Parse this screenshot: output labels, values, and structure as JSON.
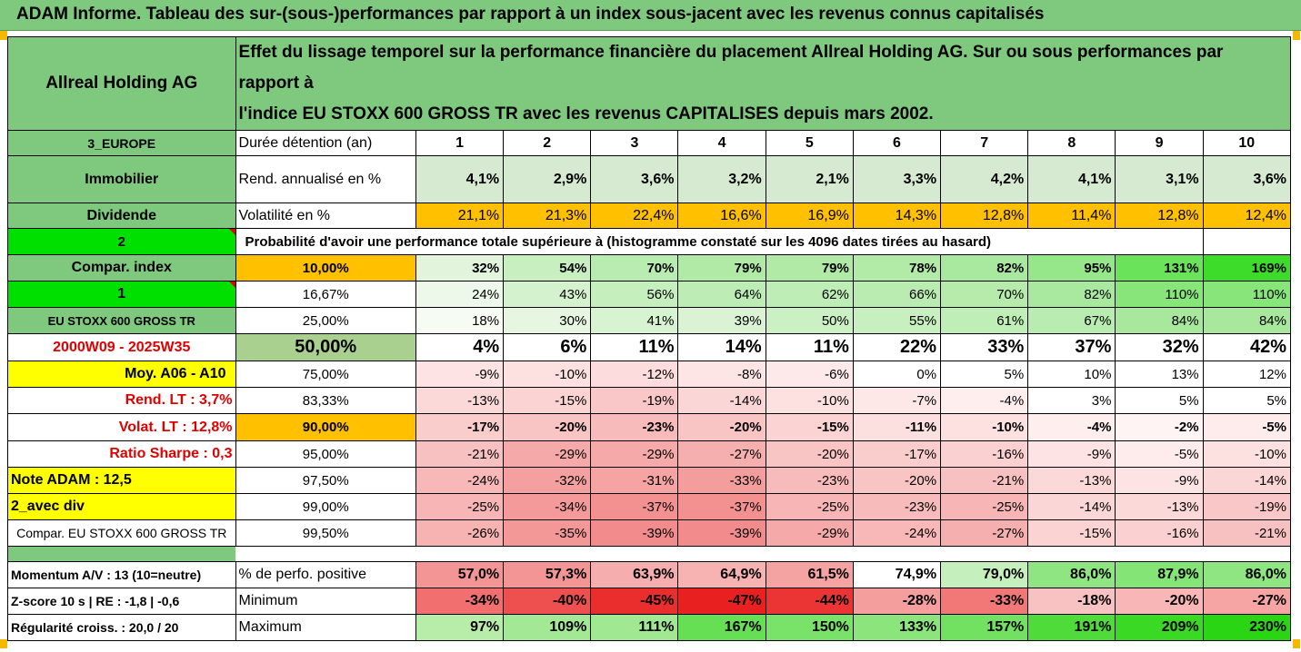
{
  "title": "ADAM Informe. Tableau des sur-(sous-)performances par rapport à un index sous-jacent avec les revenus connus capitalisés",
  "header": {
    "name": "Allreal Holding AG",
    "description_line1": "Effet du lissage temporel sur la performance financière du placement Allreal Holding AG. Sur ou sous performances par rapport à",
    "description_line2": "l'indice EU STOXX 600 GROSS TR avec les revenus CAPITALISES depuis mars 2002."
  },
  "holding": {
    "label": "Durée détention (an)",
    "years": [
      "1",
      "2",
      "3",
      "4",
      "5",
      "6",
      "7",
      "8",
      "9",
      "10"
    ]
  },
  "rend": {
    "label": "Rend. annualisé en %",
    "values": [
      "4,1%",
      "2,9%",
      "3,6%",
      "3,2%",
      "2,1%",
      "3,3%",
      "4,2%",
      "4,1%",
      "3,1%",
      "3,6%"
    ]
  },
  "vol": {
    "label": "Volatilité en %",
    "values": [
      "21,1%",
      "21,3%",
      "22,4%",
      "16,6%",
      "16,9%",
      "14,3%",
      "12,8%",
      "11,4%",
      "12,8%",
      "12,4%"
    ]
  },
  "prob_title": "Probabilité d'avoir une performance totale supérieure à (histogramme constaté sur les 4096 dates tirées au hasard)",
  "side": {
    "region": "3_EUROPE",
    "sector": "Immobilier",
    "type": "Dividende",
    "num2": "2",
    "compar": "Compar. index",
    "num1": "1",
    "index": "EU STOXX 600 GROSS TR",
    "period": "2000W09 - 2025W35",
    "moy": "Moy. A06 - A10",
    "rend_lt": "Rend. LT :   3,7%",
    "volat_lt": "Volat. LT :   12,8%",
    "sharpe": "Ratio Sharpe :   0,3",
    "note": "Note ADAM : 12,5",
    "div": "2_avec div",
    "compar_index": "Compar. EU STOXX 600 GROSS TR"
  },
  "quantiles": [
    {
      "q": "10,00%",
      "v": [
        "32%",
        "54%",
        "70%",
        "79%",
        "79%",
        "78%",
        "82%",
        "95%",
        "131%",
        "169%"
      ],
      "c": [
        "#e2f5dc",
        "#c8efc0",
        "#b9ecb0",
        "#b0eaa6",
        "#b0eaa6",
        "#b2eaa8",
        "#a9e99f",
        "#96e68a",
        "#6ae25a",
        "#3ddc2a"
      ]
    },
    {
      "q": "16,67%",
      "v": [
        "24%",
        "43%",
        "56%",
        "64%",
        "62%",
        "66%",
        "70%",
        "82%",
        "110%",
        "110%"
      ],
      "c": [
        "#eef8ea",
        "#d5f2ce",
        "#c6efbe",
        "#bdedb4",
        "#bfedb6",
        "#baecb1",
        "#b6ebac",
        "#a9e99f",
        "#87e57a",
        "#87e57a"
      ]
    },
    {
      "q": "25,00%",
      "v": [
        "18%",
        "30%",
        "41%",
        "39%",
        "50%",
        "55%",
        "61%",
        "67%",
        "84%",
        "84%"
      ],
      "c": [
        "#f6fbf4",
        "#e6f6e1",
        "#d8f3d1",
        "#dbf3d4",
        "#cbf0c4",
        "#c7efbf",
        "#c0eeb7",
        "#b9ecb0",
        "#a7e89d",
        "#a7e89d"
      ]
    },
    {
      "q": "50,00%",
      "v": [
        "4%",
        "6%",
        "11%",
        "14%",
        "11%",
        "22%",
        "33%",
        "37%",
        "32%",
        "42%"
      ],
      "c": [
        "#ffffff",
        "#ffffff",
        "#ffffff",
        "#ffffff",
        "#ffffff",
        "#ffffff",
        "#ffffff",
        "#ffffff",
        "#ffffff",
        "#ffffff"
      ]
    },
    {
      "q": "75,00%",
      "v": [
        "-9%",
        "-10%",
        "-12%",
        "-8%",
        "-6%",
        "0%",
        "5%",
        "10%",
        "13%",
        "12%"
      ],
      "c": [
        "#fde3e3",
        "#fde1e1",
        "#fcdcdc",
        "#fde5e5",
        "#fde9e9",
        "#ffffff",
        "#ffffff",
        "#ffffff",
        "#ffffff",
        "#ffffff"
      ]
    },
    {
      "q": "83,33%",
      "v": [
        "-13%",
        "-15%",
        "-19%",
        "-14%",
        "-10%",
        "-7%",
        "-4%",
        "3%",
        "5%",
        "5%"
      ],
      "c": [
        "#fcd9d9",
        "#fbd3d3",
        "#f9c7c7",
        "#fbd6d6",
        "#fde1e1",
        "#fde7e7",
        "#feeeee",
        "#ffffff",
        "#ffffff",
        "#ffffff"
      ]
    },
    {
      "q": "90,00%",
      "v": [
        "-17%",
        "-20%",
        "-23%",
        "-20%",
        "-15%",
        "-11%",
        "-10%",
        "-4%",
        "-2%",
        "-5%"
      ],
      "c": [
        "#facdcd",
        "#f9c4c4",
        "#f8bbbb",
        "#f9c4c4",
        "#fbd3d3",
        "#fcdfdf",
        "#fde1e1",
        "#feeeee",
        "#fff4f4",
        "#feecec"
      ]
    },
    {
      "q": "95,00%",
      "v": [
        "-21%",
        "-29%",
        "-29%",
        "-27%",
        "-20%",
        "-17%",
        "-16%",
        "-9%",
        "-5%",
        "-10%"
      ],
      "c": [
        "#f8c1c1",
        "#f6a9a9",
        "#f6a9a9",
        "#f6afaf",
        "#f9c4c4",
        "#facdcd",
        "#fad0d0",
        "#fde3e3",
        "#feecec",
        "#fde1e1"
      ]
    },
    {
      "q": "97,50%",
      "v": [
        "-24%",
        "-32%",
        "-31%",
        "-33%",
        "-23%",
        "-20%",
        "-21%",
        "-13%",
        "-9%",
        "-14%"
      ],
      "c": [
        "#f8b8b8",
        "#f5a0a0",
        "#f5a3a3",
        "#f49d9d",
        "#f8bbbb",
        "#f9c4c4",
        "#f8c1c1",
        "#fcd9d9",
        "#fde3e3",
        "#fbd6d6"
      ]
    },
    {
      "q": "99,00%",
      "v": [
        "-25%",
        "-34%",
        "-37%",
        "-37%",
        "-25%",
        "-23%",
        "-25%",
        "-14%",
        "-13%",
        "-19%"
      ],
      "c": [
        "#f7b5b5",
        "#f49a9a",
        "#f39191",
        "#f39191",
        "#f7b5b5",
        "#f8bbbb",
        "#f7b5b5",
        "#fbd6d6",
        "#fcd9d9",
        "#f9c7c7"
      ]
    },
    {
      "q": "99,50%",
      "v": [
        "-26%",
        "-35%",
        "-39%",
        "-39%",
        "-29%",
        "-24%",
        "-27%",
        "-15%",
        "-16%",
        "-21%"
      ],
      "c": [
        "#f7b2b2",
        "#f49797",
        "#f28b8b",
        "#f28b8b",
        "#f6a9a9",
        "#f8b8b8",
        "#f6afaf",
        "#fbd3d3",
        "#fad0d0",
        "#f8c1c1"
      ]
    }
  ],
  "bottom": [
    {
      "left": "Momentum A/V : 13 (10=neutre)",
      "label": "% de perfo. positive",
      "v": [
        "57,0%",
        "57,3%",
        "63,9%",
        "64,9%",
        "61,5%",
        "74,9%",
        "79,0%",
        "86,0%",
        "87,9%",
        "86,0%"
      ],
      "c": [
        "#f39595",
        "#f39595",
        "#f6adad",
        "#f7b2b2",
        "#f5a2a2",
        "#ffffff",
        "#c6efbe",
        "#8ee582",
        "#84e476",
        "#8ee582"
      ]
    },
    {
      "left": "Z-score 10 s | RE : -1,8 | -0,6",
      "label": "Minimum",
      "v": [
        "-34%",
        "-40%",
        "-45%",
        "-47%",
        "-44%",
        "-28%",
        "-33%",
        "-18%",
        "-20%",
        "-27%"
      ],
      "c": [
        "#f26f6f",
        "#ee4f4f",
        "#ea2e2e",
        "#e82020",
        "#eb3535",
        "#f59e9e",
        "#f27777",
        "#f9c2c2",
        "#f8b6b6",
        "#f6a4a4"
      ]
    },
    {
      "left": "Régularité croiss. : 20,0 / 20",
      "label": "Maximum",
      "v": [
        "97%",
        "109%",
        "111%",
        "167%",
        "150%",
        "133%",
        "157%",
        "191%",
        "209%",
        "230%"
      ],
      "c": [
        "#b7eca9",
        "#a3e895",
        "#a1e893",
        "#67df55",
        "#79e268",
        "#8ce57c",
        "#72e161",
        "#4fdc3b",
        "#3ad924",
        "#2ad613"
      ]
    }
  ]
}
